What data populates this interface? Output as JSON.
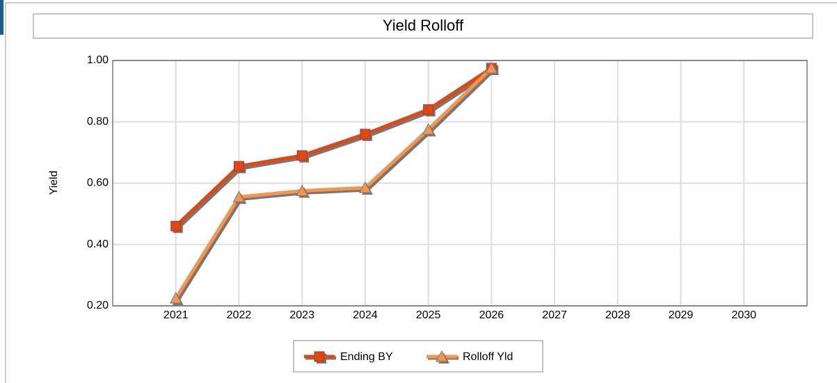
{
  "chart_data": {
    "type": "line",
    "title": "Yield Rolloff",
    "y_label": "Yield",
    "categories": [
      "2021",
      "2022",
      "2023",
      "2024",
      "2025",
      "2026",
      "2027",
      "2028",
      "2029",
      "2030"
    ],
    "series": [
      {
        "name": "Ending BY",
        "color": "#e0480f",
        "marker": "square",
        "values": [
          0.46,
          0.655,
          0.69,
          0.76,
          0.84,
          0.975,
          null,
          null,
          null,
          null
        ]
      },
      {
        "name": "Rolloff Yld",
        "color": "#f7964a",
        "marker": "triangle",
        "values": [
          0.225,
          0.555,
          0.575,
          0.585,
          0.775,
          0.975,
          null,
          null,
          null,
          null
        ]
      }
    ],
    "ylim": [
      0.2,
      1.0
    ],
    "yticks": [
      {
        "value": 0.2,
        "label": "0.20"
      },
      {
        "value": 0.4,
        "label": "0.40"
      },
      {
        "value": 0.6,
        "label": "0.60"
      },
      {
        "value": 0.8,
        "label": "0.80"
      },
      {
        "value": 1.0,
        "label": "1.00"
      }
    ],
    "grid": true,
    "legend": "bottom"
  }
}
